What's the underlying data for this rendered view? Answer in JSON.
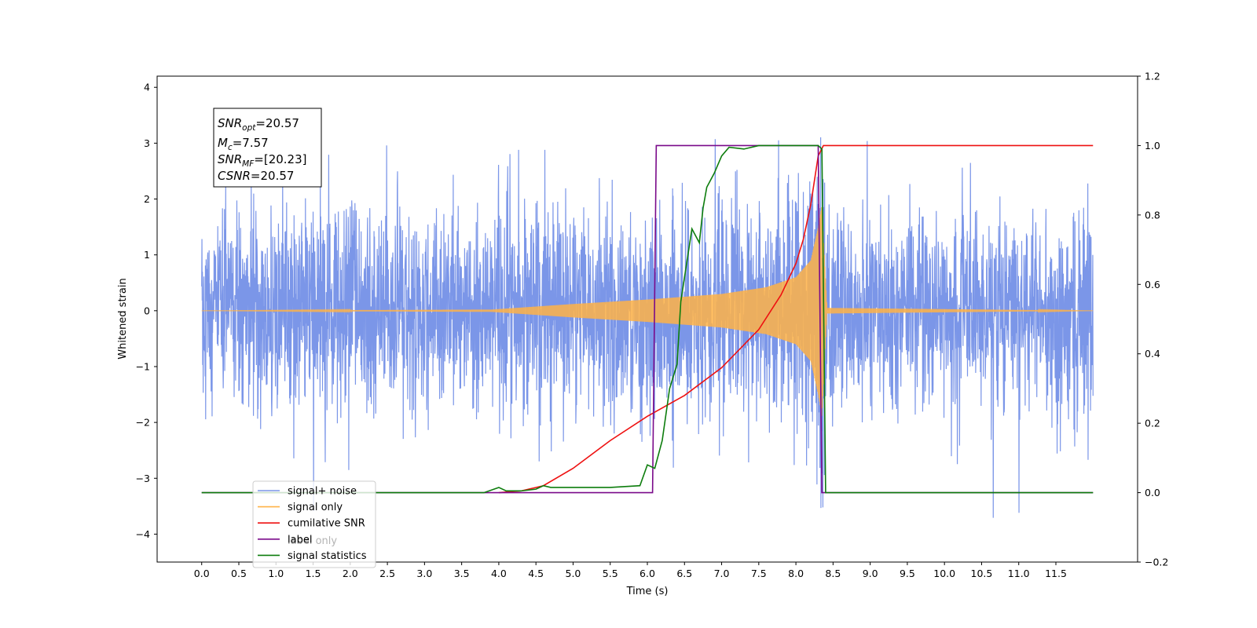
{
  "chart_data": {
    "type": "line",
    "xlabel": "Time (s)",
    "ylabel": "Whitened strain",
    "xlim": [
      -0.6,
      12.6
    ],
    "ylim": [
      -4.5,
      4.2
    ],
    "ylim_right": [
      -0.2,
      1.2
    ],
    "x_ticks": [
      "0.0",
      "0.5",
      "1.0",
      "1.5",
      "2.0",
      "2.5",
      "3.0",
      "3.5",
      "4.0",
      "4.5",
      "5.0",
      "5.5",
      "6.0",
      "6.5",
      "7.0",
      "7.5",
      "8.0",
      "8.5",
      "9.0",
      "9.5",
      "10.0",
      "10.5",
      "11.0",
      "11.5"
    ],
    "y_ticks_left": [
      "4",
      "3",
      "2",
      "1",
      "0",
      "−1",
      "−2",
      "−3",
      "−4"
    ],
    "y_ticks_right": [
      "1.2",
      "1.0",
      "0.8",
      "0.6",
      "0.4",
      "0.2",
      "0.0",
      "−0.2"
    ],
    "grid": false,
    "legend_position": "lower-left",
    "annotation": {
      "snr_opt": {
        "symbol": "SNR",
        "sub": "opt",
        "value": "=20.57"
      },
      "mc": {
        "symbol": "M",
        "sub": "c",
        "value": "=7.57"
      },
      "snr_mf": {
        "symbol": "SNR",
        "sub": "MF",
        "value": "=[20.23]"
      },
      "csnr": {
        "symbol": "CSNR",
        "value": "=20.57"
      }
    },
    "series": [
      {
        "name": "signal+ noise",
        "color": "#7b96e8",
        "axis": "left",
        "kind": "noise",
        "t_range": [
          0.0,
          12.0
        ],
        "envelope_sigma": 0.9
      },
      {
        "name": "signal only",
        "color": "#ffb347",
        "axis": "left",
        "kind": "chirp",
        "t_range": [
          0.0,
          12.0
        ],
        "merger_time": 8.35,
        "envelope": [
          [
            0.0,
            0.0
          ],
          [
            3.9,
            0.02
          ],
          [
            5.0,
            0.12
          ],
          [
            6.0,
            0.2
          ],
          [
            7.0,
            0.3
          ],
          [
            7.6,
            0.42
          ],
          [
            8.0,
            0.6
          ],
          [
            8.2,
            0.9
          ],
          [
            8.3,
            1.5
          ],
          [
            8.35,
            1.9
          ],
          [
            8.42,
            0.05
          ],
          [
            12.0,
            0.0
          ]
        ]
      },
      {
        "name": "cumilative SNR",
        "color": "#ee1111",
        "axis": "right",
        "points": [
          [
            4.0,
            0.0
          ],
          [
            4.3,
            0.005
          ],
          [
            4.6,
            0.02
          ],
          [
            5.0,
            0.07
          ],
          [
            5.5,
            0.15
          ],
          [
            6.0,
            0.22
          ],
          [
            6.5,
            0.28
          ],
          [
            7.0,
            0.36
          ],
          [
            7.5,
            0.47
          ],
          [
            7.8,
            0.57
          ],
          [
            8.0,
            0.66
          ],
          [
            8.1,
            0.73
          ],
          [
            8.2,
            0.83
          ],
          [
            8.3,
            0.97
          ],
          [
            8.37,
            1.0
          ],
          [
            12.0,
            1.0
          ]
        ]
      },
      {
        "name": "label",
        "color": "#7a0a8a",
        "axis": "right",
        "points": [
          [
            0.0,
            0.0
          ],
          [
            6.07,
            0.0
          ],
          [
            6.12,
            1.0
          ],
          [
            8.3,
            1.0
          ],
          [
            8.35,
            0.0
          ],
          [
            12.0,
            0.0
          ]
        ]
      },
      {
        "name": "signal statistics",
        "color": "#0d7d0d",
        "axis": "right",
        "points": [
          [
            0.0,
            0.0
          ],
          [
            3.5,
            0.0
          ],
          [
            3.8,
            0.0
          ],
          [
            4.0,
            0.015
          ],
          [
            4.1,
            0.005
          ],
          [
            4.3,
            0.005
          ],
          [
            4.5,
            0.01
          ],
          [
            4.6,
            0.02
          ],
          [
            4.7,
            0.015
          ],
          [
            5.0,
            0.015
          ],
          [
            5.5,
            0.015
          ],
          [
            5.9,
            0.02
          ],
          [
            6.0,
            0.08
          ],
          [
            6.1,
            0.07
          ],
          [
            6.2,
            0.15
          ],
          [
            6.3,
            0.3
          ],
          [
            6.4,
            0.37
          ],
          [
            6.45,
            0.55
          ],
          [
            6.5,
            0.62
          ],
          [
            6.6,
            0.76
          ],
          [
            6.7,
            0.72
          ],
          [
            6.75,
            0.82
          ],
          [
            6.8,
            0.88
          ],
          [
            6.9,
            0.92
          ],
          [
            7.0,
            0.97
          ],
          [
            7.1,
            0.995
          ],
          [
            7.3,
            0.99
          ],
          [
            7.5,
            1.0
          ],
          [
            8.0,
            1.0
          ],
          [
            8.3,
            1.0
          ],
          [
            8.35,
            0.99
          ],
          [
            8.4,
            0.0
          ],
          [
            8.5,
            0.0
          ],
          [
            12.0,
            0.0
          ]
        ]
      }
    ],
    "legend_entries": [
      {
        "name": "signal+ noise",
        "color": "#7b96e8"
      },
      {
        "name": "signal only",
        "color": "#ffb347"
      },
      {
        "name": "cumilative SNR",
        "color": "#ee1111"
      },
      {
        "name": "label",
        "color": "#7a0a8a"
      },
      {
        "name": "signal statistics",
        "color": "#0d7d0d"
      }
    ],
    "legend_ghost_text": "label only"
  }
}
